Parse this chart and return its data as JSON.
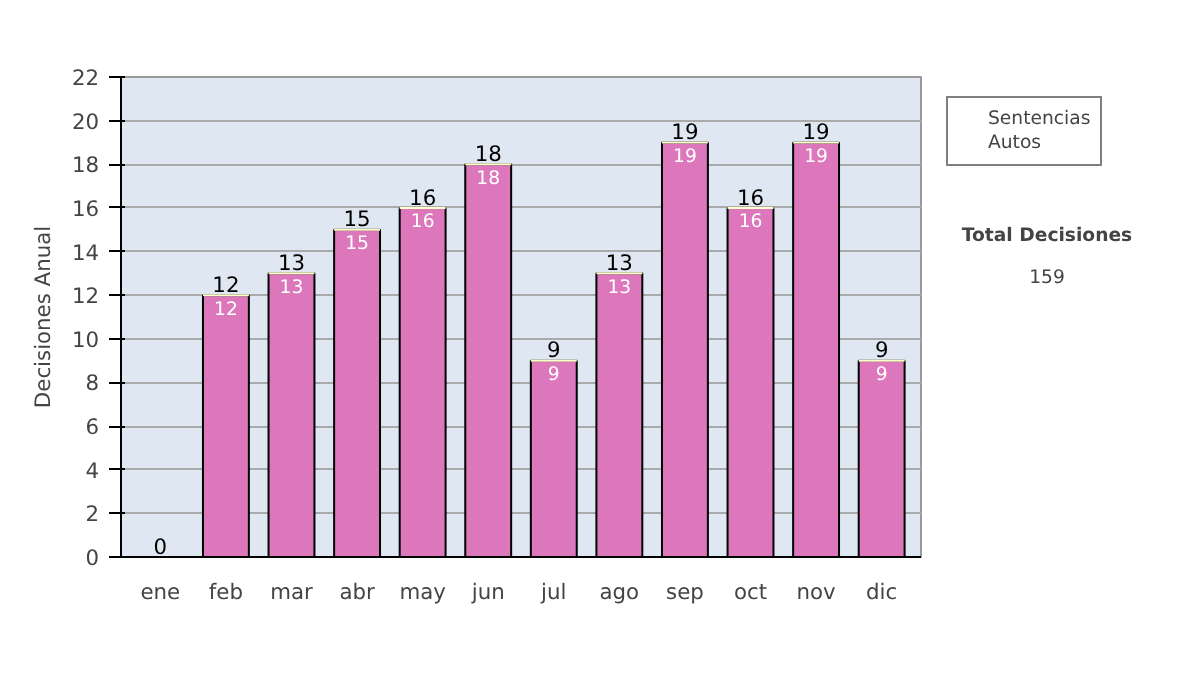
{
  "chart_data": {
    "type": "bar",
    "stacked": true,
    "ylabel": "Decisiones Anual",
    "categories": [
      "ene",
      "feb",
      "mar",
      "abr",
      "may",
      "jun",
      "jul",
      "ago",
      "sep",
      "oct",
      "nov",
      "dic"
    ],
    "series": [
      {
        "name": "Sentencias",
        "color": "#dd77bb",
        "values": [
          0,
          12,
          13,
          15,
          16,
          18,
          9,
          13,
          19,
          16,
          19,
          9
        ],
        "value_labels": [
          null,
          "12",
          "13",
          "15",
          "16",
          "18",
          "9",
          "13",
          "19",
          "16",
          "19",
          "9"
        ]
      },
      {
        "name": "Autos",
        "color": "#ffffcc",
        "values": [
          0,
          0,
          0,
          0,
          0,
          0,
          0,
          0,
          0,
          0,
          0,
          0
        ]
      }
    ],
    "totals": [
      "0",
      "12",
      "13",
      "15",
      "16",
      "18",
      "9",
      "13",
      "19",
      "16",
      "19",
      "9"
    ],
    "ylim": [
      0,
      22
    ],
    "yticks": [
      0,
      2,
      4,
      6,
      8,
      10,
      12,
      14,
      16,
      18,
      20,
      22
    ],
    "grid": "y",
    "legend": "right",
    "annotations": [
      "Total Decisiones",
      "159"
    ]
  }
}
